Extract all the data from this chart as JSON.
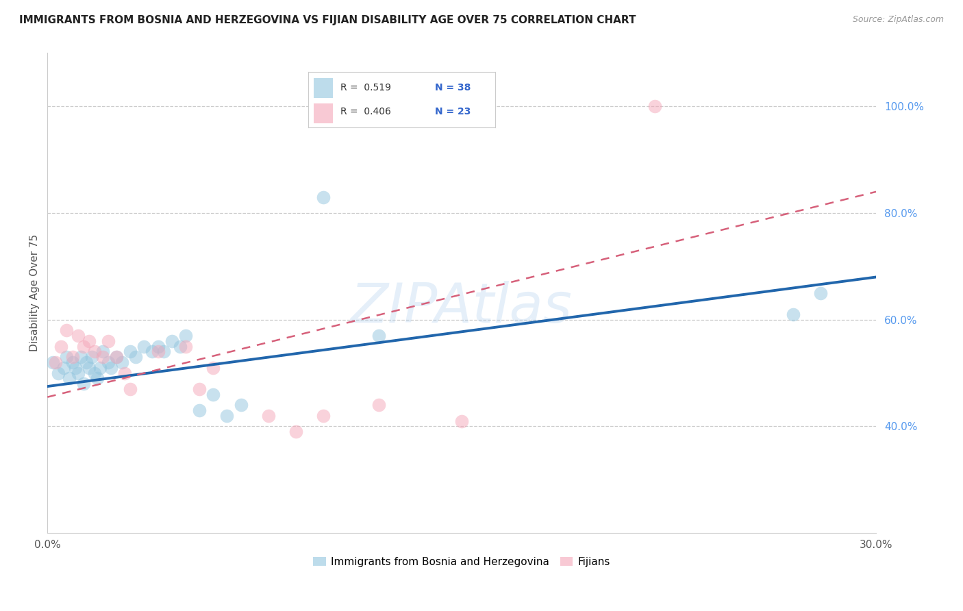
{
  "title": "IMMIGRANTS FROM BOSNIA AND HERZEGOVINA VS FIJIAN DISABILITY AGE OVER 75 CORRELATION CHART",
  "source": "Source: ZipAtlas.com",
  "ylabel": "Disability Age Over 75",
  "xlim": [
    0.0,
    0.3
  ],
  "ylim": [
    0.2,
    1.1
  ],
  "xticks": [
    0.0,
    0.05,
    0.1,
    0.15,
    0.2,
    0.25,
    0.3
  ],
  "xtick_labels": [
    "0.0%",
    "",
    "",
    "",
    "",
    "",
    "30.0%"
  ],
  "ytick_labels_right": [
    "100.0%",
    "80.0%",
    "60.0%",
    "40.0%"
  ],
  "yticks_right": [
    1.0,
    0.8,
    0.6,
    0.4
  ],
  "legend_r1": "R =  0.519",
  "legend_n1": "N = 38",
  "legend_r2": "R =  0.406",
  "legend_n2": "N = 23",
  "legend_label1": "Immigrants from Bosnia and Herzegovina",
  "legend_label2": "Fijians",
  "watermark": "ZIPAtlas",
  "blue_color": "#92c5de",
  "pink_color": "#f4a6b8",
  "blue_line_color": "#2166ac",
  "pink_line_color": "#d6607a",
  "blue_scatter_x": [
    0.002,
    0.004,
    0.006,
    0.007,
    0.008,
    0.009,
    0.01,
    0.011,
    0.012,
    0.013,
    0.014,
    0.015,
    0.016,
    0.017,
    0.018,
    0.019,
    0.02,
    0.022,
    0.023,
    0.025,
    0.027,
    0.03,
    0.032,
    0.035,
    0.038,
    0.04,
    0.042,
    0.045,
    0.048,
    0.05,
    0.055,
    0.06,
    0.065,
    0.07,
    0.1,
    0.12,
    0.27,
    0.28
  ],
  "blue_scatter_y": [
    0.52,
    0.5,
    0.51,
    0.53,
    0.49,
    0.52,
    0.51,
    0.5,
    0.53,
    0.48,
    0.52,
    0.51,
    0.53,
    0.5,
    0.49,
    0.51,
    0.54,
    0.52,
    0.51,
    0.53,
    0.52,
    0.54,
    0.53,
    0.55,
    0.54,
    0.55,
    0.54,
    0.56,
    0.55,
    0.57,
    0.43,
    0.46,
    0.42,
    0.44,
    0.83,
    0.57,
    0.61,
    0.65
  ],
  "pink_scatter_x": [
    0.003,
    0.005,
    0.007,
    0.009,
    0.011,
    0.013,
    0.015,
    0.017,
    0.02,
    0.022,
    0.025,
    0.028,
    0.03,
    0.04,
    0.05,
    0.055,
    0.06,
    0.08,
    0.09,
    0.1,
    0.12,
    0.15,
    0.22
  ],
  "pink_scatter_y": [
    0.52,
    0.55,
    0.58,
    0.53,
    0.57,
    0.55,
    0.56,
    0.54,
    0.53,
    0.56,
    0.53,
    0.5,
    0.47,
    0.54,
    0.55,
    0.47,
    0.51,
    0.42,
    0.39,
    0.42,
    0.44,
    0.41,
    1.0
  ],
  "blue_trend_x": [
    0.0,
    0.3
  ],
  "blue_trend_y": [
    0.475,
    0.68
  ],
  "pink_trend_x": [
    0.0,
    0.3
  ],
  "pink_trend_y": [
    0.455,
    0.84
  ]
}
